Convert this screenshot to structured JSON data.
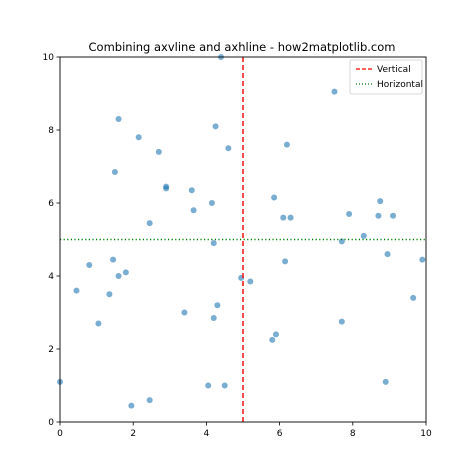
{
  "chart_data": {
    "type": "scatter",
    "title": "Combining axvline and axhline - how2matplotlib.com",
    "xlabel": "",
    "ylabel": "",
    "xlim": [
      0,
      10
    ],
    "ylim": [
      0,
      10
    ],
    "xticks": [
      "0",
      "2",
      "4",
      "6",
      "8",
      "10"
    ],
    "yticks": [
      "0",
      "2",
      "4",
      "6",
      "8",
      "10"
    ],
    "grid": false,
    "legend_position": "top-right",
    "points": [
      [
        0.0,
        1.1
      ],
      [
        0.45,
        3.6
      ],
      [
        0.8,
        4.3
      ],
      [
        1.05,
        2.7
      ],
      [
        1.35,
        3.5
      ],
      [
        1.45,
        4.45
      ],
      [
        1.5,
        6.85
      ],
      [
        1.6,
        4.0
      ],
      [
        1.6,
        8.3
      ],
      [
        1.8,
        4.1
      ],
      [
        1.95,
        0.45
      ],
      [
        2.15,
        7.8
      ],
      [
        2.45,
        0.6
      ],
      [
        2.45,
        5.45
      ],
      [
        2.7,
        7.4
      ],
      [
        2.9,
        6.45
      ],
      [
        2.9,
        6.4
      ],
      [
        3.4,
        3.0
      ],
      [
        3.6,
        6.35
      ],
      [
        3.65,
        5.8
      ],
      [
        4.05,
        1.0
      ],
      [
        4.15,
        6.0
      ],
      [
        4.2,
        2.85
      ],
      [
        4.2,
        4.9
      ],
      [
        4.25,
        8.1
      ],
      [
        4.3,
        3.2
      ],
      [
        4.4,
        10.0
      ],
      [
        4.5,
        1.0
      ],
      [
        4.6,
        7.5
      ],
      [
        4.95,
        3.95
      ],
      [
        5.2,
        3.85
      ],
      [
        5.8,
        2.25
      ],
      [
        5.85,
        6.15
      ],
      [
        5.9,
        2.4
      ],
      [
        6.1,
        5.6
      ],
      [
        6.15,
        4.4
      ],
      [
        6.2,
        7.6
      ],
      [
        6.3,
        5.6
      ],
      [
        7.5,
        9.05
      ],
      [
        7.7,
        2.75
      ],
      [
        7.7,
        4.95
      ],
      [
        7.9,
        5.7
      ],
      [
        8.3,
        5.1
      ],
      [
        8.7,
        5.65
      ],
      [
        8.75,
        6.05
      ],
      [
        8.9,
        1.1
      ],
      [
        8.95,
        4.6
      ],
      [
        9.1,
        5.65
      ],
      [
        9.65,
        3.4
      ],
      [
        9.9,
        4.45
      ]
    ],
    "marker_color": "#1f77b4",
    "vline": {
      "x": 5,
      "label": "Vertical",
      "color": "#ff0000",
      "style": "dashed"
    },
    "hline": {
      "y": 5,
      "label": "Horizontal",
      "color": "#008000",
      "style": "dotted"
    }
  }
}
